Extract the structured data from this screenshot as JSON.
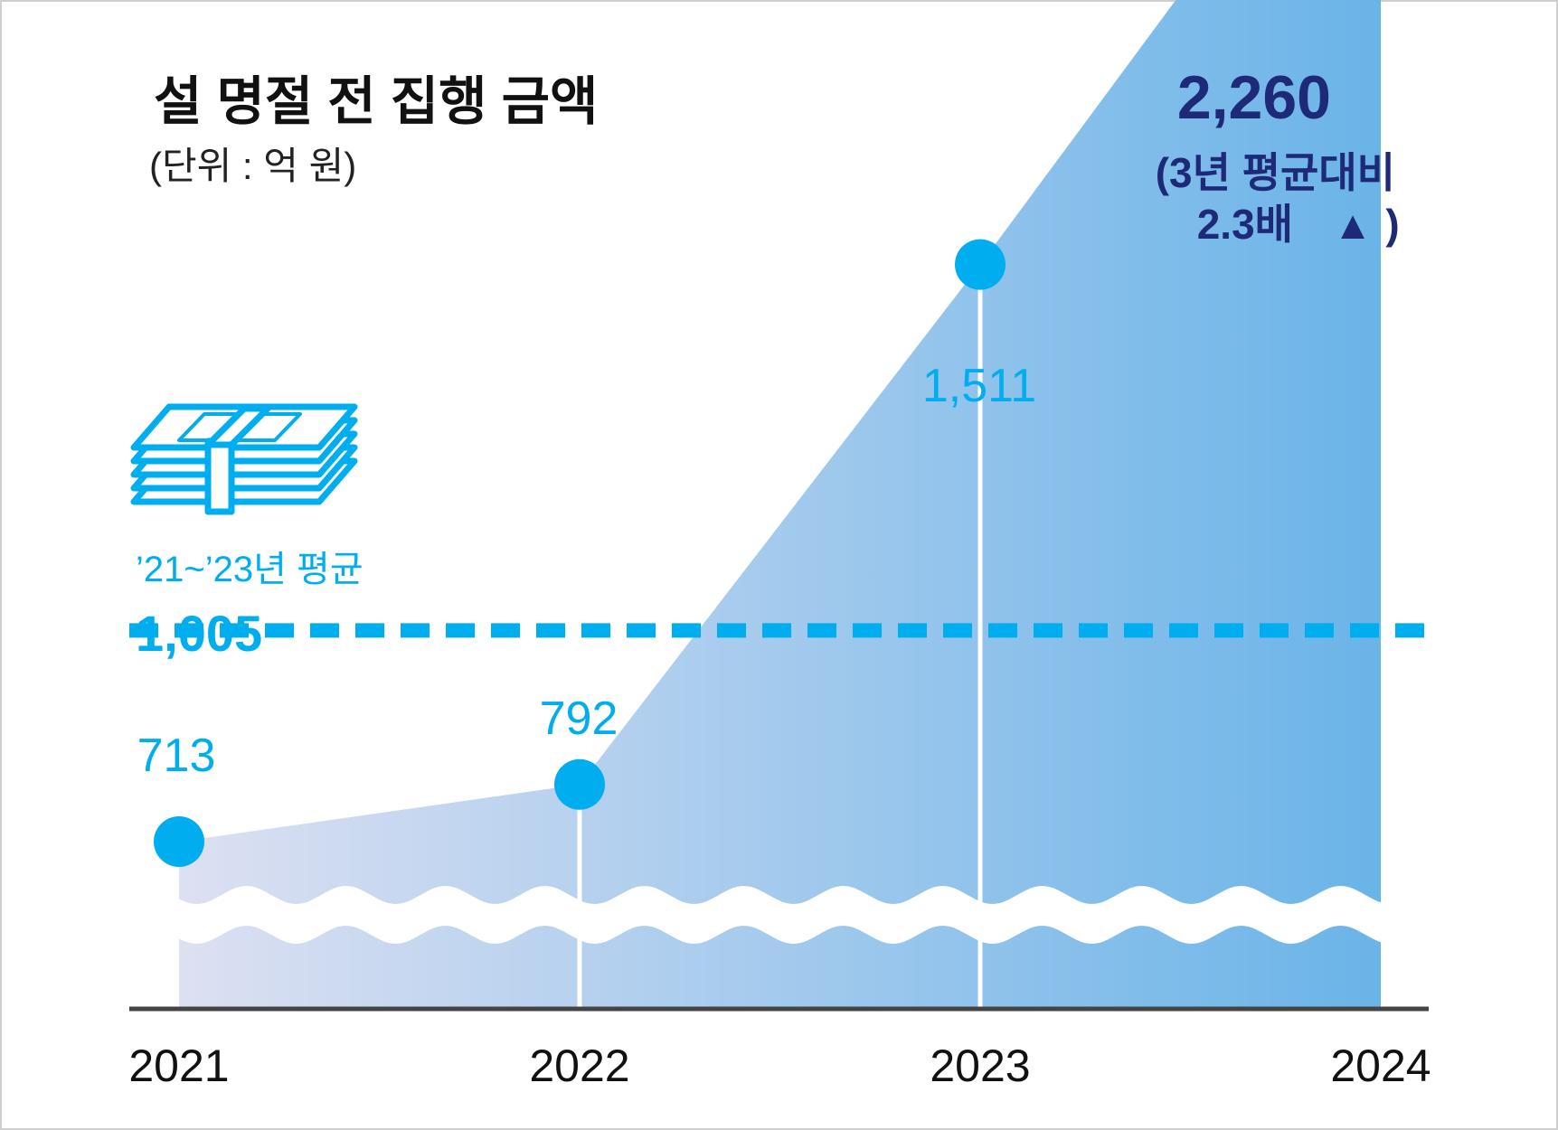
{
  "chart_data": {
    "type": "area",
    "title": "설 명절 전 집행 금액",
    "subtitle": "(단위 : 억 원)",
    "categories": [
      "2021",
      "2022",
      "2023",
      "2024"
    ],
    "series": [
      {
        "name": "설 명절 전 집행 금액",
        "values": [
          713,
          792,
          1511,
          2260
        ]
      }
    ],
    "data_labels": [
      "713",
      "792",
      "1,511",
      "2,260"
    ],
    "average": {
      "label": "’21~’23년 평균",
      "value": 1005,
      "value_label": "1,005"
    },
    "highlight_note": {
      "line1": "(3년 평균대비",
      "line2": "2.3배",
      "arrow": "▲",
      "close": ")"
    },
    "axis_break": true,
    "xlabel": "",
    "ylabel": "",
    "colors": {
      "point": "#00aeef",
      "highlight": "#1e2a78",
      "area_start": "#dde0f2",
      "area_end": "#6ab4e8",
      "axis": "#444444",
      "title": "#111111"
    },
    "icons": [
      "money-stack-icon"
    ]
  }
}
